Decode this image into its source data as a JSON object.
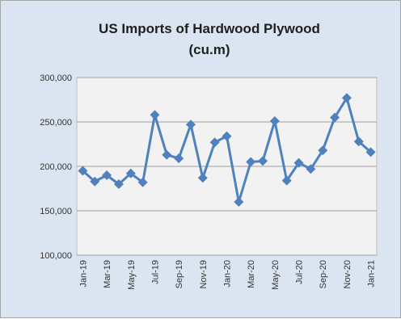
{
  "chart_data": {
    "type": "line",
    "title": "US Imports of Hardwood Plywood",
    "subtitle": "(cu.m)",
    "xlabel": "",
    "ylabel": "",
    "ylim": [
      100000,
      300000
    ],
    "yticks": [
      "100,000",
      "150,000",
      "200,000",
      "250,000",
      "300,000"
    ],
    "ytick_values": [
      100000,
      150000,
      200000,
      250000,
      300000
    ],
    "grid": true,
    "legend": "none",
    "categories": [
      "Jan-19",
      "Feb-19",
      "Mar-19",
      "Apr-19",
      "May-19",
      "Jun-19",
      "Jul-19",
      "Aug-19",
      "Sep-19",
      "Oct-19",
      "Nov-19",
      "Dec-19",
      "Jan-20",
      "Feb-20",
      "Mar-20",
      "Apr-20",
      "May-20",
      "Jun-20",
      "Jul-20",
      "Aug-20",
      "Sep-20",
      "Oct-20",
      "Nov-20",
      "Dec-20",
      "Jan-21"
    ],
    "xtick_labels": [
      "Jan-19",
      "",
      "Mar-19",
      "",
      "May-19",
      "",
      "Jul-19",
      "",
      "Sep-19",
      "",
      "Nov-19",
      "",
      "Jan-20",
      "",
      "Mar-20",
      "",
      "May-20",
      "",
      "Jul-20",
      "",
      "Sep-20",
      "",
      "Nov-20",
      "",
      "Jan-21"
    ],
    "series": [
      {
        "values": [
          195000,
          183000,
          190000,
          180000,
          192000,
          182000,
          258000,
          213000,
          209000,
          247000,
          187000,
          227000,
          234000,
          160000,
          205000,
          206000,
          251000,
          184000,
          204000,
          197000,
          218000,
          255000,
          277000,
          228000,
          216000
        ]
      }
    ],
    "colors": {
      "line": "#4f81bd",
      "marker": "#4f81bd",
      "plot_bg": "#f2f2f2",
      "frame_bg": "#dbe5f1",
      "grid": "#a0a0a0"
    }
  }
}
